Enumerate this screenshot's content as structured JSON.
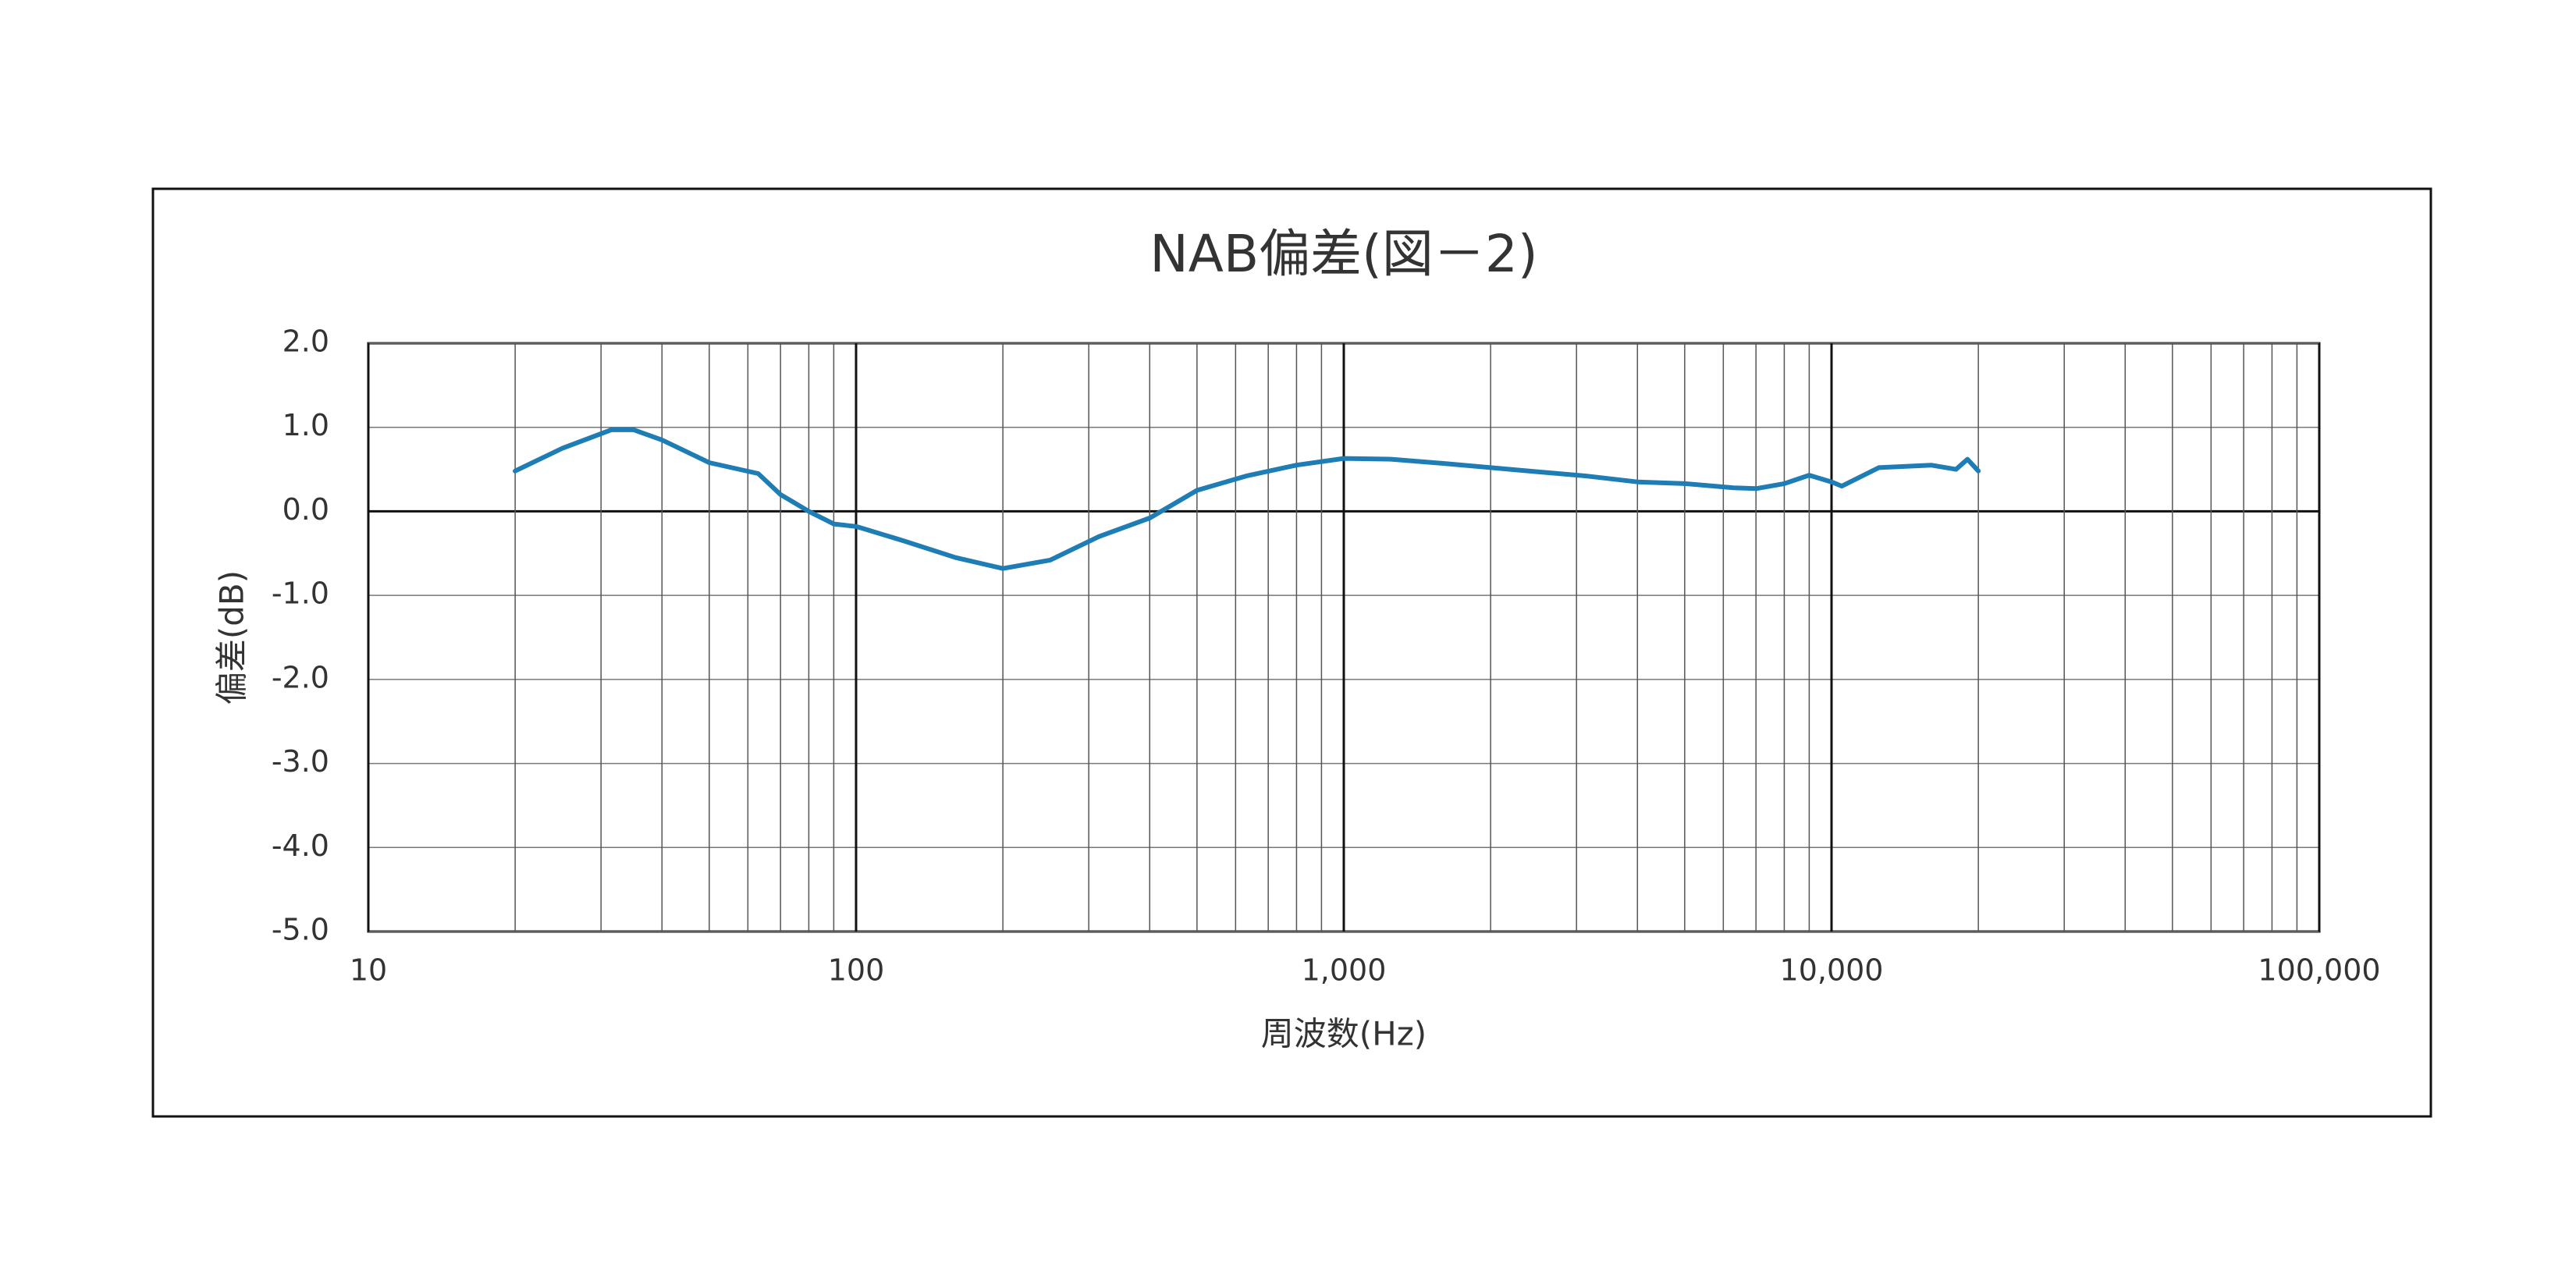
{
  "chart_data": {
    "type": "line",
    "title": "NAB偏差(図－2)",
    "x_label": "周波数(Hz)",
    "y_label": "偏差(dB)",
    "x": [
      20,
      25,
      31.5,
      35,
      40,
      50,
      63,
      70,
      80,
      90,
      100,
      125,
      160,
      200,
      250,
      315,
      400,
      500,
      630,
      800,
      1000,
      1250,
      1600,
      2000,
      2500,
      3150,
      4000,
      5000,
      6300,
      7000,
      8000,
      9000,
      10000,
      10500,
      12500,
      16000,
      18000,
      19000,
      20000
    ],
    "series": [
      {
        "name": "NAB偏差",
        "color": "#1f7db6",
        "values": [
          0.48,
          0.75,
          0.97,
          0.97,
          0.85,
          0.58,
          0.45,
          0.2,
          0.0,
          -0.15,
          -0.18,
          -0.35,
          -0.55,
          -0.68,
          -0.58,
          -0.3,
          -0.08,
          0.25,
          0.42,
          0.55,
          0.63,
          0.62,
          0.57,
          0.52,
          0.47,
          0.42,
          0.35,
          0.33,
          0.28,
          0.27,
          0.33,
          0.43,
          0.35,
          0.3,
          0.52,
          0.55,
          0.5,
          0.62,
          0.48
        ]
      }
    ],
    "xlim": [
      10,
      100000
    ],
    "xlog": true,
    "xticks": [
      10,
      100,
      {
        "value": 1000,
        "label": "1,000"
      },
      {
        "value": 10000,
        "label": "10,000"
      },
      {
        "value": 100000,
        "label": "100,000"
      }
    ],
    "ylim": [
      -5,
      2
    ],
    "yticks": [
      {
        "value": -5,
        "label": "-5.0"
      },
      {
        "value": -4,
        "label": "-4.0"
      },
      {
        "value": -3,
        "label": "-3.0"
      },
      {
        "value": -2,
        "label": "-2.0"
      },
      {
        "value": -1,
        "label": "-1.0"
      },
      {
        "value": 0,
        "label": "0.0"
      },
      {
        "value": 1,
        "label": "1.0"
      },
      {
        "value": 2,
        "label": "2.0"
      }
    ],
    "grid": true
  }
}
